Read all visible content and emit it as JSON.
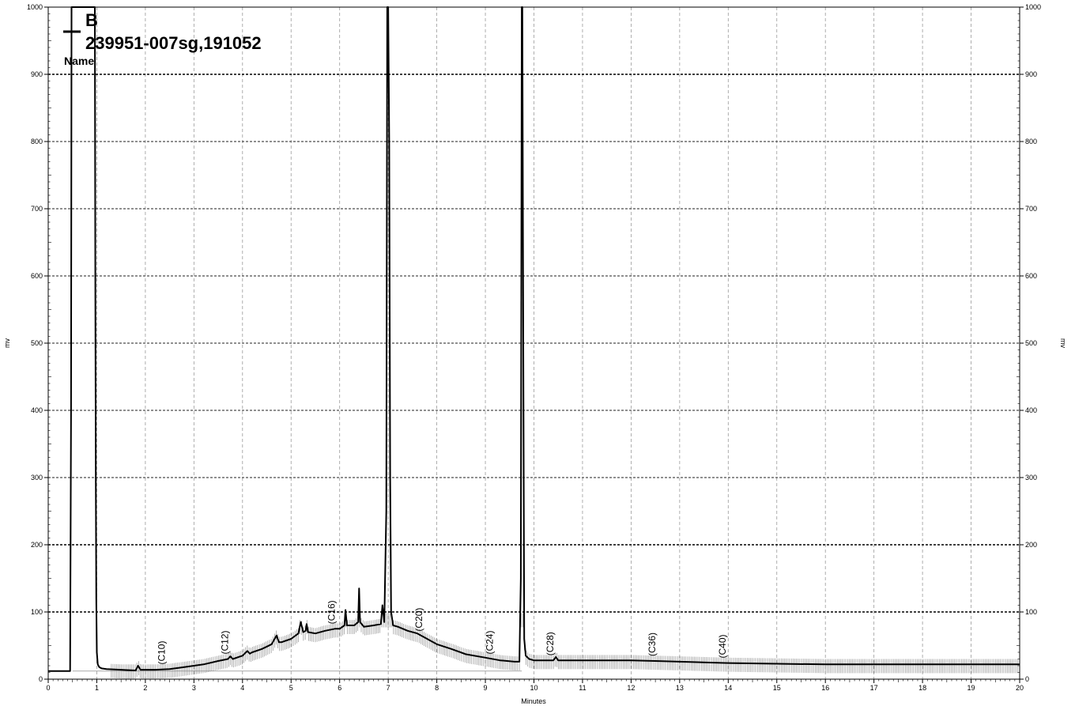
{
  "chart_data": {
    "type": "line",
    "title": "",
    "xlabel": "Minutes",
    "ylabel": "mv",
    "ylabel_right": "mv",
    "xlim": [
      0,
      20
    ],
    "ylim": [
      0,
      1000
    ],
    "x_ticks": [
      "0",
      "1",
      "2",
      "3",
      "4",
      "5",
      "6",
      "7",
      "8",
      "9",
      "10",
      "11",
      "12",
      "13",
      "14",
      "15",
      "16",
      "17",
      "18",
      "19",
      "20"
    ],
    "y_ticks": [
      "0",
      "100",
      "200",
      "300",
      "400",
      "500",
      "600",
      "700",
      "800",
      "900",
      "1000"
    ],
    "grid": true,
    "legend": {
      "placement": "top-left",
      "letter": "B",
      "sample": "239951-007sg,191052",
      "name_label": "Name"
    },
    "peak_labels": [
      {
        "text": "(C10)",
        "x": 2.4
      },
      {
        "text": "(C12)",
        "x": 3.7
      },
      {
        "text": "(C16)",
        "x": 5.9
      },
      {
        "text": "(C20)",
        "x": 7.7
      },
      {
        "text": "(C24)",
        "x": 9.15
      },
      {
        "text": "(C28)",
        "x": 10.4
      },
      {
        "text": "(C36)",
        "x": 12.5
      },
      {
        "text": "(C40)",
        "x": 13.95
      }
    ],
    "series": [
      {
        "x": [
          0,
          0.45,
          0.47,
          0.48,
          0.5,
          0.9,
          0.94,
          0.96,
          0.97,
          0.98,
          0.99,
          1.0,
          1.02,
          1.05,
          1.1,
          1.2,
          1.5,
          1.8,
          1.85,
          1.9,
          2.2,
          2.5,
          2.8,
          3.0,
          3.2,
          3.5,
          3.7,
          3.75,
          3.8,
          4.0,
          4.1,
          4.15,
          4.2,
          4.4,
          4.6,
          4.7,
          4.75,
          4.8,
          5.0,
          5.15,
          5.2,
          5.25,
          5.3,
          5.32,
          5.35,
          5.5,
          5.7,
          5.9,
          6.0,
          6.1,
          6.12,
          6.15,
          6.3,
          6.38,
          6.4,
          6.42,
          6.5,
          6.7,
          6.85,
          6.88,
          6.92,
          6.96,
          6.98,
          7.0,
          7.02,
          7.04,
          7.06,
          7.1,
          7.2,
          7.4,
          7.6,
          7.8,
          8.0,
          8.3,
          8.6,
          9.0,
          9.3,
          9.6,
          9.7,
          9.73,
          9.75,
          9.76,
          9.78,
          9.8,
          9.83,
          9.9,
          10.0,
          10.4,
          10.45,
          10.5,
          11.0,
          11.5,
          12.0,
          12.5,
          13.0,
          14.0,
          15.0,
          16.0,
          17.0,
          18.0,
          19.0,
          20.0
        ],
        "y": [
          12,
          12,
          400,
          1000,
          1000,
          1000,
          1000,
          1000,
          600,
          300,
          120,
          40,
          22,
          18,
          16,
          15,
          14,
          13,
          20,
          14,
          14,
          15,
          18,
          20,
          22,
          27,
          30,
          34,
          30,
          35,
          42,
          38,
          40,
          45,
          52,
          65,
          55,
          55,
          60,
          68,
          85,
          70,
          72,
          82,
          70,
          68,
          72,
          75,
          75,
          80,
          103,
          80,
          80,
          85,
          135,
          85,
          78,
          80,
          82,
          110,
          85,
          250,
          1000,
          1000,
          800,
          300,
          100,
          80,
          78,
          72,
          68,
          60,
          52,
          45,
          37,
          32,
          28,
          26,
          26,
          150,
          1000,
          1000,
          500,
          60,
          35,
          30,
          28,
          28,
          33,
          28,
          28,
          28,
          28,
          27,
          26,
          24,
          23,
          22,
          22,
          22,
          22,
          22
        ]
      }
    ]
  }
}
